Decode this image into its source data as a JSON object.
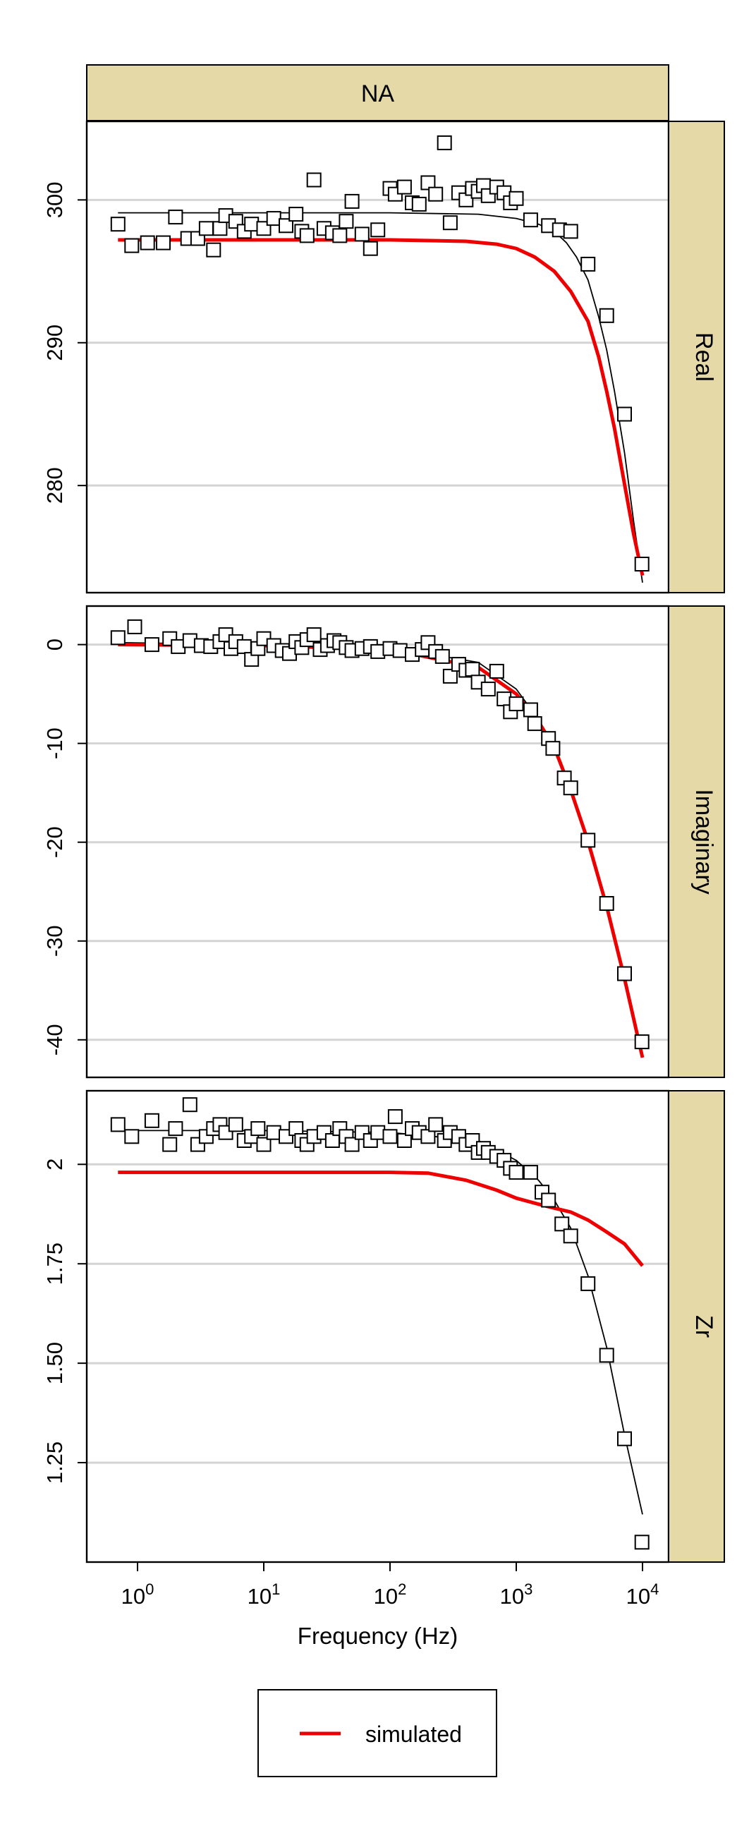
{
  "strip_title": "NA",
  "xlabel": "Frequency (Hz)",
  "legend": {
    "label": "simulated",
    "color": "#ee0000"
  },
  "colors": {
    "strip": "#e6d9a8",
    "simulated": "#ee0000",
    "fit": "#000000",
    "grid": "#d4d4d4"
  },
  "chart_data": {
    "type": "scatter",
    "x_scale": "log10",
    "x_ticks": [
      1,
      10,
      100,
      1000,
      10000
    ],
    "panels": [
      {
        "label": "Real",
        "ylim": [
          272.5,
          305.5
        ],
        "yticks": [
          280,
          290,
          300
        ],
        "observed": [
          [
            0.7,
            298.3
          ],
          [
            0.9,
            296.8
          ],
          [
            1.2,
            297.0
          ],
          [
            1.6,
            297.0
          ],
          [
            2.0,
            298.8
          ],
          [
            2.5,
            297.3
          ],
          [
            3.0,
            297.3
          ],
          [
            3.5,
            298.0
          ],
          [
            4.0,
            296.5
          ],
          [
            4.5,
            298.0
          ],
          [
            5.0,
            298.9
          ],
          [
            6.0,
            298.5
          ],
          [
            7.0,
            297.8
          ],
          [
            8.0,
            298.3
          ],
          [
            10.0,
            298.0
          ],
          [
            12.0,
            298.7
          ],
          [
            15.0,
            298.2
          ],
          [
            18.0,
            299.0
          ],
          [
            20.0,
            297.8
          ],
          [
            22.0,
            297.5
          ],
          [
            25.0,
            301.4
          ],
          [
            30.0,
            298.0
          ],
          [
            35.0,
            297.7
          ],
          [
            40.0,
            297.5
          ],
          [
            45.0,
            298.5
          ],
          [
            50.0,
            299.9
          ],
          [
            60.0,
            297.6
          ],
          [
            70.0,
            296.6
          ],
          [
            80.0,
            297.9
          ],
          [
            100.0,
            300.8
          ],
          [
            110.0,
            300.4
          ],
          [
            130.0,
            300.9
          ],
          [
            150.0,
            299.8
          ],
          [
            170.0,
            299.7
          ],
          [
            200.0,
            301.2
          ],
          [
            230.0,
            300.4
          ],
          [
            270.0,
            304.0
          ],
          [
            300.0,
            298.4
          ],
          [
            350.0,
            300.5
          ],
          [
            400.0,
            300.0
          ],
          [
            450.0,
            300.8
          ],
          [
            500.0,
            300.6
          ],
          [
            550.0,
            301.0
          ],
          [
            600.0,
            300.3
          ],
          [
            700.0,
            300.9
          ],
          [
            800.0,
            300.5
          ],
          [
            900.0,
            299.8
          ],
          [
            1000.0,
            300.1
          ],
          [
            1300.0,
            298.6
          ],
          [
            1800.0,
            298.2
          ],
          [
            2200.0,
            297.9
          ],
          [
            2700.0,
            297.8
          ],
          [
            3700.0,
            295.5
          ],
          [
            5200.0,
            291.9
          ],
          [
            7200.0,
            285.0
          ],
          [
            9900.0,
            274.5
          ]
        ],
        "fit": [
          [
            0.7,
            299.1
          ],
          [
            10,
            299.1
          ],
          [
            100,
            299.1
          ],
          [
            500,
            299.0
          ],
          [
            1000,
            298.7
          ],
          [
            1500,
            298.3
          ],
          [
            2000,
            297.8
          ],
          [
            2500,
            297.0
          ],
          [
            3000,
            296.0
          ],
          [
            3700,
            294.4
          ],
          [
            4500,
            291.8
          ],
          [
            5200,
            289.5
          ],
          [
            6000,
            286.6
          ],
          [
            7200,
            282.3
          ],
          [
            8500,
            277.5
          ],
          [
            10000,
            273.2
          ]
        ],
        "simulated": [
          [
            0.7,
            297.2
          ],
          [
            10,
            297.2
          ],
          [
            100,
            297.2
          ],
          [
            400,
            297.1
          ],
          [
            700,
            296.9
          ],
          [
            1000,
            296.6
          ],
          [
            1400,
            296.0
          ],
          [
            2000,
            295.0
          ],
          [
            2700,
            293.6
          ],
          [
            3700,
            291.5
          ],
          [
            4500,
            289.0
          ],
          [
            5200,
            286.6
          ],
          [
            6000,
            284.0
          ],
          [
            7200,
            280.1
          ],
          [
            8500,
            276.6
          ],
          [
            10000,
            273.7
          ]
        ]
      },
      {
        "label": "Imaginary",
        "ylim": [
          -43.8,
          3.9
        ],
        "yticks": [
          0,
          -10,
          -20,
          -30,
          -40
        ],
        "observed": [
          [
            0.7,
            0.7
          ],
          [
            0.95,
            1.8
          ],
          [
            1.3,
            0.0
          ],
          [
            1.8,
            0.6
          ],
          [
            2.1,
            -0.2
          ],
          [
            2.6,
            0.4
          ],
          [
            3.2,
            -0.1
          ],
          [
            3.8,
            -0.2
          ],
          [
            4.5,
            0.3
          ],
          [
            5.0,
            1.0
          ],
          [
            5.5,
            -0.4
          ],
          [
            6.0,
            0.3
          ],
          [
            7.0,
            -0.2
          ],
          [
            8.0,
            -1.5
          ],
          [
            9.0,
            -0.4
          ],
          [
            10.0,
            0.6
          ],
          [
            12.0,
            -0.1
          ],
          [
            14.0,
            -0.6
          ],
          [
            16.0,
            -0.9
          ],
          [
            18.0,
            0.3
          ],
          [
            20.0,
            -0.3
          ],
          [
            22.0,
            0.5
          ],
          [
            25.0,
            1.0
          ],
          [
            28.0,
            -0.5
          ],
          [
            32.0,
            -0.1
          ],
          [
            36.0,
            0.4
          ],
          [
            40.0,
            0.2
          ],
          [
            45.0,
            -0.3
          ],
          [
            50.0,
            -0.6
          ],
          [
            60.0,
            -0.4
          ],
          [
            70.0,
            -0.2
          ],
          [
            80.0,
            -0.7
          ],
          [
            100.0,
            -0.4
          ],
          [
            120.0,
            -0.6
          ],
          [
            150.0,
            -1.0
          ],
          [
            180.0,
            -0.5
          ],
          [
            200.0,
            0.2
          ],
          [
            230.0,
            -0.7
          ],
          [
            260.0,
            -1.2
          ],
          [
            300.0,
            -3.2
          ],
          [
            350.0,
            -2.0
          ],
          [
            400.0,
            -2.6
          ],
          [
            450.0,
            -2.5
          ],
          [
            500.0,
            -3.8
          ],
          [
            600.0,
            -4.5
          ],
          [
            700.0,
            -2.7
          ],
          [
            800.0,
            -5.5
          ],
          [
            900.0,
            -6.8
          ],
          [
            1000.0,
            -6.0
          ],
          [
            1300.0,
            -6.6
          ],
          [
            1400.0,
            -8.0
          ],
          [
            1800.0,
            -9.5
          ],
          [
            1950.0,
            -10.5
          ],
          [
            2400.0,
            -13.5
          ],
          [
            2700.0,
            -14.5
          ],
          [
            3700.0,
            -19.8
          ],
          [
            5200.0,
            -26.2
          ],
          [
            7200.0,
            -33.3
          ],
          [
            9900.0,
            -40.2
          ]
        ],
        "fit": [
          [
            0.7,
            0.2
          ],
          [
            10,
            0.0
          ],
          [
            100,
            -0.3
          ],
          [
            500,
            -1.8
          ],
          [
            1000,
            -4.5
          ],
          [
            1500,
            -7.6
          ],
          [
            2000,
            -10.3
          ],
          [
            2700,
            -14.6
          ],
          [
            3700,
            -19.8
          ],
          [
            5200,
            -26.3
          ],
          [
            7200,
            -33.5
          ],
          [
            10000,
            -41.6
          ]
        ],
        "simulated": [
          [
            0.7,
            0.0
          ],
          [
            10,
            -0.1
          ],
          [
            100,
            -0.5
          ],
          [
            500,
            -2.3
          ],
          [
            1000,
            -5.0
          ],
          [
            1500,
            -7.8
          ],
          [
            2000,
            -10.4
          ],
          [
            2700,
            -14.7
          ],
          [
            3700,
            -19.9
          ],
          [
            5200,
            -26.5
          ],
          [
            7200,
            -33.8
          ],
          [
            10000,
            -41.8
          ]
        ]
      },
      {
        "label": "Zr",
        "ylim": [
          1.0,
          2.185
        ],
        "yticks": [
          1.25,
          1.5,
          1.75,
          2.0
        ],
        "observed": [
          [
            0.7,
            2.1
          ],
          [
            0.9,
            2.07
          ],
          [
            1.3,
            2.11
          ],
          [
            1.8,
            2.05
          ],
          [
            2.0,
            2.09
          ],
          [
            2.6,
            2.15
          ],
          [
            3.0,
            2.05
          ],
          [
            3.5,
            2.07
          ],
          [
            4.0,
            2.09
          ],
          [
            4.5,
            2.1
          ],
          [
            5.0,
            2.08
          ],
          [
            6.0,
            2.1
          ],
          [
            7.0,
            2.06
          ],
          [
            8.0,
            2.07
          ],
          [
            9.0,
            2.09
          ],
          [
            10.0,
            2.05
          ],
          [
            12.0,
            2.08
          ],
          [
            15.0,
            2.07
          ],
          [
            18.0,
            2.09
          ],
          [
            20.0,
            2.06
          ],
          [
            22.0,
            2.05
          ],
          [
            25.0,
            2.07
          ],
          [
            30.0,
            2.08
          ],
          [
            35.0,
            2.06
          ],
          [
            40.0,
            2.09
          ],
          [
            45.0,
            2.07
          ],
          [
            50.0,
            2.05
          ],
          [
            60.0,
            2.08
          ],
          [
            70.0,
            2.06
          ],
          [
            80.0,
            2.08
          ],
          [
            100.0,
            2.07
          ],
          [
            110.0,
            2.12
          ],
          [
            130.0,
            2.06
          ],
          [
            150.0,
            2.09
          ],
          [
            170.0,
            2.08
          ],
          [
            200.0,
            2.07
          ],
          [
            230.0,
            2.1
          ],
          [
            270.0,
            2.06
          ],
          [
            300.0,
            2.08
          ],
          [
            350.0,
            2.07
          ],
          [
            400.0,
            2.05
          ],
          [
            450.0,
            2.06
          ],
          [
            500.0,
            2.03
          ],
          [
            550.0,
            2.04
          ],
          [
            600.0,
            2.03
          ],
          [
            700.0,
            2.02
          ],
          [
            800.0,
            2.01
          ],
          [
            900.0,
            1.99
          ],
          [
            1000.0,
            1.98
          ],
          [
            1300.0,
            1.98
          ],
          [
            1600.0,
            1.93
          ],
          [
            1800.0,
            1.91
          ],
          [
            2300.0,
            1.85
          ],
          [
            2700.0,
            1.82
          ],
          [
            3700.0,
            1.7
          ],
          [
            5200.0,
            1.52
          ],
          [
            7200.0,
            1.31
          ],
          [
            9900.0,
            1.05
          ]
        ],
        "fit": [
          [
            0.7,
            2.085
          ],
          [
            10,
            2.085
          ],
          [
            100,
            2.08
          ],
          [
            500,
            2.06
          ],
          [
            1000,
            2.01
          ],
          [
            1500,
            1.96
          ],
          [
            2000,
            1.91
          ],
          [
            2700,
            1.84
          ],
          [
            3700,
            1.72
          ],
          [
            5200,
            1.54
          ],
          [
            7200,
            1.32
          ],
          [
            10000,
            1.12
          ]
        ],
        "simulated": [
          [
            0.7,
            1.98
          ],
          [
            10,
            1.98
          ],
          [
            100,
            1.98
          ],
          [
            200,
            1.978
          ],
          [
            400,
            1.96
          ],
          [
            700,
            1.935
          ],
          [
            1000,
            1.915
          ],
          [
            1500,
            1.9
          ],
          [
            2000,
            1.89
          ],
          [
            2700,
            1.88
          ],
          [
            3700,
            1.86
          ],
          [
            5200,
            1.83
          ],
          [
            7200,
            1.8
          ],
          [
            10000,
            1.745
          ]
        ]
      }
    ]
  }
}
